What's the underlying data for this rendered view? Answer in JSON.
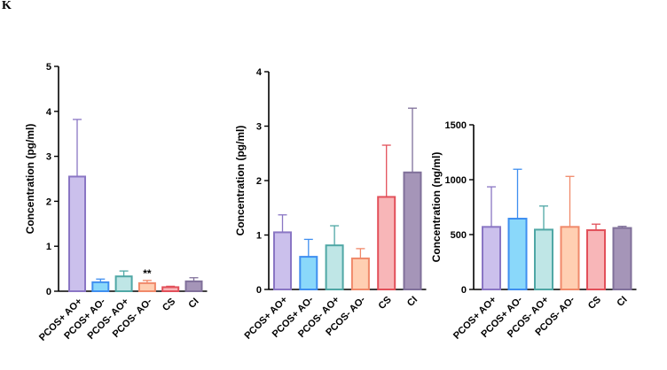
{
  "panel_label": "K",
  "chart_data": [
    {
      "type": "bar",
      "categories": [
        "PCOS+ AO+",
        "PCOS+ AO-",
        "PCOS- AO+",
        "PCOS- AO-",
        "CS",
        "CI"
      ],
      "values": [
        2.55,
        0.2,
        0.33,
        0.18,
        0.09,
        0.22
      ],
      "errors": [
        1.27,
        0.07,
        0.12,
        0.06,
        0.02,
        0.08
      ],
      "ylabel": "Concentration (pg/ml)",
      "ylim": [
        0,
        5
      ],
      "yticks": [
        0,
        1,
        2,
        3,
        4,
        5
      ],
      "annotations": [
        {
          "category": "PCOS- AO-",
          "text": "**"
        }
      ]
    },
    {
      "type": "bar",
      "categories": [
        "PCOS+ AO+",
        "PCOS+ AO-",
        "PCOS- AO+",
        "PCOS- AO-",
        "CS",
        "CI"
      ],
      "values": [
        1.05,
        0.6,
        0.81,
        0.57,
        1.7,
        2.15
      ],
      "errors": [
        0.32,
        0.32,
        0.36,
        0.18,
        0.95,
        1.18
      ],
      "ylabel": "Concentration (pg/ml)",
      "ylim": [
        0,
        4
      ],
      "yticks": [
        0,
        1,
        2,
        3,
        4
      ],
      "annotations": []
    },
    {
      "type": "bar",
      "categories": [
        "PCOS+ AO+",
        "PCOS+ AO-",
        "PCOS- AO+",
        "PCOS- AO-",
        "CS",
        "CI"
      ],
      "values": [
        570,
        645,
        545,
        570,
        540,
        560
      ],
      "errors": [
        365,
        450,
        215,
        460,
        55,
        15
      ],
      "ylabel": "Concentration (ng/ml)",
      "ylim": [
        0,
        1500
      ],
      "yticks": [
        0,
        500,
        1000,
        1500
      ],
      "annotations": []
    }
  ],
  "bar_colors": [
    {
      "fill": "#cbc0ec",
      "stroke": "#8a76c4"
    },
    {
      "fill": "#8ad8fa",
      "stroke": "#3f8ff0"
    },
    {
      "fill": "#bfe6e6",
      "stroke": "#4fa7a5"
    },
    {
      "fill": "#ffcfb2",
      "stroke": "#f0896a"
    },
    {
      "fill": "#f8b6b8",
      "stroke": "#e2505a"
    },
    {
      "fill": "#a595b8",
      "stroke": "#80709a"
    }
  ]
}
